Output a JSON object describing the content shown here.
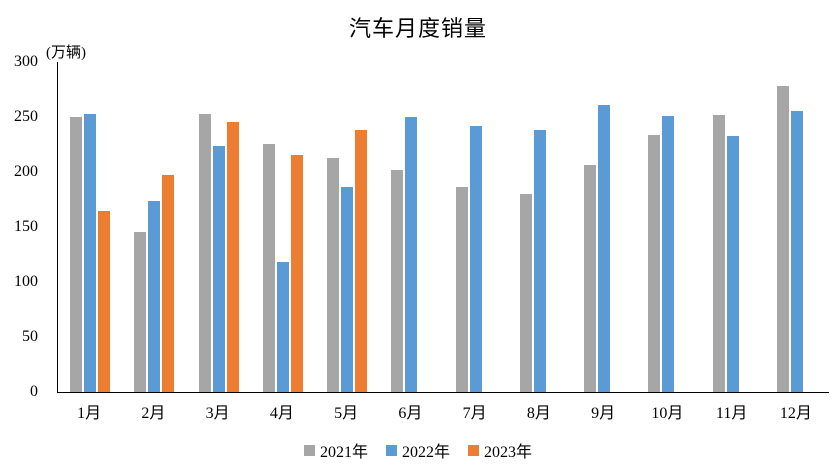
{
  "title": "汽车月度销量",
  "unit_label": "(万辆)",
  "chart_data": {
    "type": "bar",
    "title": "汽车月度销量",
    "ylabel": "(万辆)",
    "xlabel": "",
    "categories": [
      "1月",
      "2月",
      "3月",
      "4月",
      "5月",
      "6月",
      "7月",
      "8月",
      "9月",
      "10月",
      "11月",
      "12月"
    ],
    "series": [
      {
        "name": "2021年",
        "color": "#a6a6a6",
        "values": [
          250.3,
          145.5,
          252.6,
          225.2,
          212.8,
          201.5,
          186.4,
          179.9,
          206.7,
          233.3,
          252.2,
          278.6
        ]
      },
      {
        "name": "2022年",
        "color": "#5b9bd5",
        "values": [
          253.1,
          173.7,
          223.4,
          118.1,
          186.2,
          250.2,
          242.0,
          238.3,
          261.0,
          250.5,
          232.8,
          255.6
        ]
      },
      {
        "name": "2023年",
        "color": "#ed7d31",
        "values": [
          164.9,
          197.6,
          245.1,
          215.9,
          238.2,
          null,
          null,
          null,
          null,
          null,
          null,
          null
        ]
      }
    ],
    "ylim": [
      0,
      300
    ],
    "yticks": [
      0,
      50,
      100,
      150,
      200,
      250,
      300
    ],
    "grid": false,
    "legend_position": "bottom",
    "background_color": "#ffffff",
    "axis_color": "#000000",
    "text_color": "#000000"
  }
}
